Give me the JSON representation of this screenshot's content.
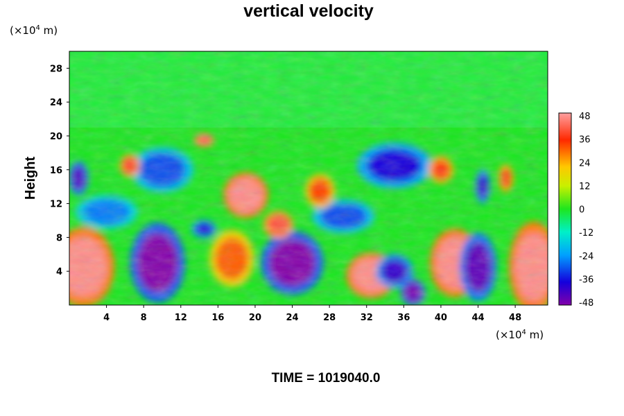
{
  "chart_data": {
    "type": "heatmap",
    "title": "vertical velocity",
    "ylabel": "Height",
    "x_unit_prefix": "(×10",
    "x_unit_exp": "4",
    "x_unit_suffix": " m)",
    "y_unit_prefix": "(×10",
    "y_unit_exp": "4",
    "y_unit_suffix": " m)",
    "xlim": [
      0,
      51.5
    ],
    "ylim": [
      0,
      30
    ],
    "x_ticks": [
      4,
      8,
      12,
      16,
      20,
      24,
      28,
      32,
      36,
      40,
      44,
      48
    ],
    "y_ticks": [
      4,
      8,
      12,
      16,
      20,
      24,
      28
    ],
    "colorbar": {
      "min": -48,
      "max": 48,
      "ticks": [
        48,
        36,
        24,
        12,
        0,
        -12,
        -24,
        -36,
        -48
      ]
    },
    "features": [
      {
        "x": 1.5,
        "y": 4.5,
        "v": 46,
        "rx": 2.5,
        "ry": 3.5
      },
      {
        "x": 9.5,
        "y": 5.0,
        "v": -48,
        "rx": 2.2,
        "ry": 3.5
      },
      {
        "x": 17.5,
        "y": 5.5,
        "v": 30,
        "rx": 1.8,
        "ry": 2.5
      },
      {
        "x": 19.0,
        "y": 13.0,
        "v": 46,
        "rx": 1.8,
        "ry": 2.0
      },
      {
        "x": 24.0,
        "y": 5.0,
        "v": -48,
        "rx": 2.5,
        "ry": 2.8
      },
      {
        "x": 32.5,
        "y": 3.5,
        "v": 46,
        "rx": 2.0,
        "ry": 2.0
      },
      {
        "x": 35.0,
        "y": 4.0,
        "v": -40,
        "rx": 1.5,
        "ry": 1.5
      },
      {
        "x": 37.0,
        "y": 1.5,
        "v": -46,
        "rx": 1.0,
        "ry": 1.2
      },
      {
        "x": 41.5,
        "y": 5.0,
        "v": 46,
        "rx": 2.0,
        "ry": 3.0
      },
      {
        "x": 44.0,
        "y": 4.5,
        "v": -44,
        "rx": 1.5,
        "ry": 3.0
      },
      {
        "x": 50.0,
        "y": 4.5,
        "v": 46,
        "rx": 2.0,
        "ry": 4.0
      },
      {
        "x": 10.0,
        "y": 16.0,
        "v": -30,
        "rx": 2.5,
        "ry": 2.0
      },
      {
        "x": 35.0,
        "y": 16.5,
        "v": -36,
        "rx": 3.0,
        "ry": 2.0
      },
      {
        "x": 40.0,
        "y": 16.0,
        "v": 36,
        "rx": 1.0,
        "ry": 1.2
      },
      {
        "x": 14.5,
        "y": 19.5,
        "v": 42,
        "rx": 0.8,
        "ry": 0.6
      },
      {
        "x": 6.5,
        "y": 16.5,
        "v": 38,
        "rx": 0.8,
        "ry": 1.0
      },
      {
        "x": 29.5,
        "y": 10.5,
        "v": -30,
        "rx": 2.5,
        "ry": 1.5
      },
      {
        "x": 22.5,
        "y": 9.5,
        "v": 40,
        "rx": 1.2,
        "ry": 1.2
      },
      {
        "x": 14.5,
        "y": 9.0,
        "v": -36,
        "rx": 1.0,
        "ry": 0.8
      },
      {
        "x": 1.0,
        "y": 15.0,
        "v": -42,
        "rx": 0.8,
        "ry": 1.5
      },
      {
        "x": 44.5,
        "y": 14.0,
        "v": -40,
        "rx": 0.6,
        "ry": 1.5
      },
      {
        "x": 47.0,
        "y": 15.0,
        "v": 36,
        "rx": 0.6,
        "ry": 1.2
      },
      {
        "x": 27.0,
        "y": 13.5,
        "v": 32,
        "rx": 1.2,
        "ry": 1.5
      },
      {
        "x": 4.0,
        "y": 11.0,
        "v": -26,
        "rx": 2.5,
        "ry": 1.5
      }
    ]
  },
  "time_label": "TIME = 1019040.0"
}
